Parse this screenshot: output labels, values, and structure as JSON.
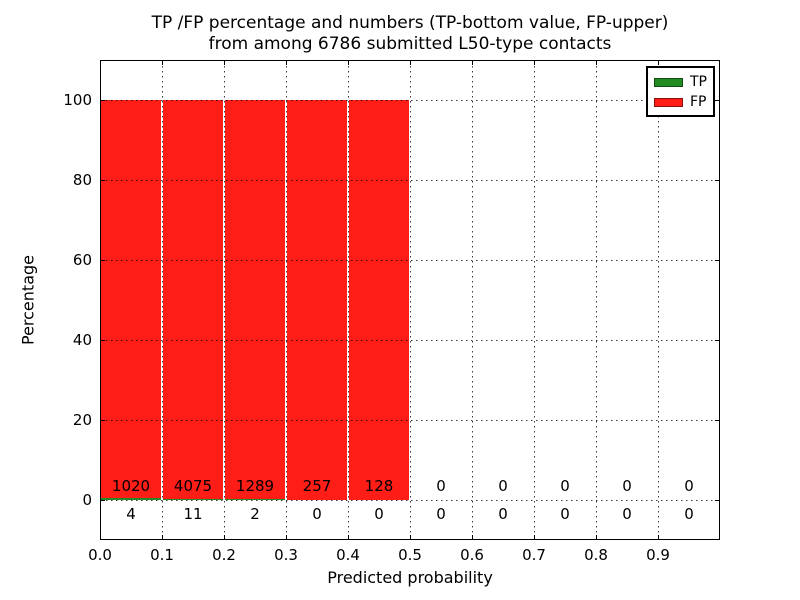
{
  "title": {
    "line1": "TP /FP percentage and numbers (TP-bottom value, FP-upper)",
    "line2": "from among 6786 submitted L50-type contacts"
  },
  "legend": {
    "items": [
      {
        "label": "TP",
        "color": "#228b22"
      },
      {
        "label": "FP",
        "color": "#ff1d17"
      }
    ]
  },
  "chart_data": {
    "type": "bar",
    "stacked": true,
    "title": "TP /FP percentage and numbers (TP-bottom value, FP-upper) from among 6786 submitted L50-type contacts",
    "xlabel": "Predicted probability",
    "ylabel": "Percentage",
    "total_submitted_contacts": 6786,
    "xlim": [
      0.0,
      1.0
    ],
    "ylim": [
      -10,
      110
    ],
    "grid": "dotted",
    "legend_position": "upper right",
    "xtick_labels": [
      "0.0",
      "0.1",
      "0.2",
      "0.3",
      "0.4",
      "0.5",
      "0.6",
      "0.7",
      "0.8",
      "0.9"
    ],
    "ytick_values": [
      0,
      20,
      40,
      60,
      80,
      100
    ],
    "bin_width": 0.1,
    "bins": [
      {
        "range": "0.0-0.1",
        "tp": 4,
        "fp": 1020
      },
      {
        "range": "0.1-0.2",
        "tp": 11,
        "fp": 4075
      },
      {
        "range": "0.2-0.3",
        "tp": 2,
        "fp": 1289
      },
      {
        "range": "0.3-0.4",
        "tp": 0,
        "fp": 257
      },
      {
        "range": "0.4-0.5",
        "tp": 0,
        "fp": 128
      },
      {
        "range": "0.5-0.6",
        "tp": 0,
        "fp": 0
      },
      {
        "range": "0.6-0.7",
        "tp": 0,
        "fp": 0
      },
      {
        "range": "0.7-0.8",
        "tp": 0,
        "fp": 0
      },
      {
        "range": "0.8-0.9",
        "tp": 0,
        "fp": 0
      },
      {
        "range": "0.9-1.0",
        "tp": 0,
        "fp": 0
      }
    ],
    "series": [
      {
        "name": "TP",
        "color": "#228b22",
        "values": [
          4,
          11,
          2,
          0,
          0,
          0,
          0,
          0,
          0,
          0
        ]
      },
      {
        "name": "FP",
        "color": "#ff1d17",
        "values": [
          1020,
          4075,
          1289,
          257,
          128,
          0,
          0,
          0,
          0,
          0
        ]
      }
    ]
  }
}
